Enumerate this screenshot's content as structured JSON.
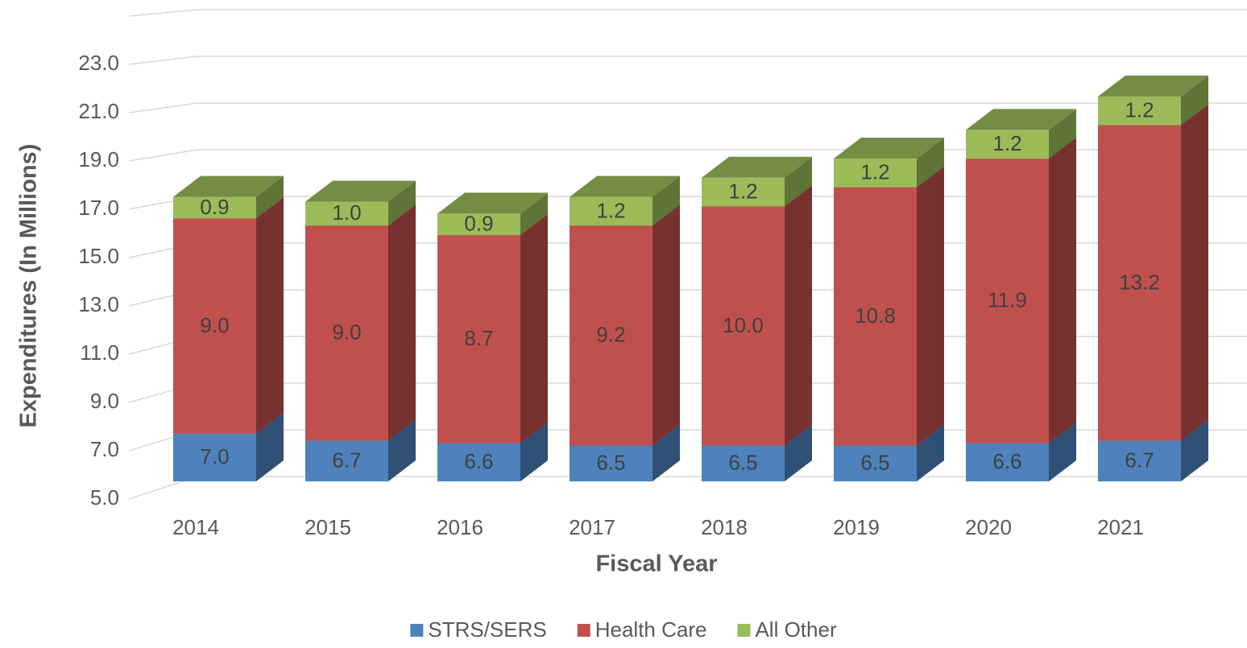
{
  "chart_data": {
    "type": "bar3d_stacked",
    "x_label": "Fiscal Year",
    "y_label": "Expenditures (In Millions)",
    "categories": [
      "2014",
      "2015",
      "2016",
      "2017",
      "2018",
      "2019",
      "2020",
      "2021"
    ],
    "series": [
      {
        "name": "STRS/SERS",
        "color": "#4f81bd",
        "values": [
          7.0,
          6.7,
          6.6,
          6.5,
          6.5,
          6.5,
          6.6,
          6.7
        ],
        "value_labels": [
          "7.0",
          "6.7",
          "6.6",
          "6.5",
          "6.5",
          "6.5",
          "6.6",
          "6.7"
        ]
      },
      {
        "name": "Health Care",
        "color": "#c0504d",
        "values": [
          9.0,
          9.0,
          8.7,
          9.2,
          10.0,
          10.8,
          11.9,
          13.2
        ],
        "value_labels": [
          "9.0",
          "9.0",
          "8.7",
          "9.2",
          "10.0",
          "10.8",
          "11.9",
          "13.2"
        ]
      },
      {
        "name": "All Other",
        "color": "#9bbb59",
        "values": [
          0.9,
          1.0,
          0.9,
          1.2,
          1.2,
          1.2,
          1.2,
          1.2
        ],
        "value_labels": [
          "0.9",
          "1.0",
          "0.9",
          "1.2",
          "1.2",
          "1.2",
          "1.2",
          "1.2"
        ]
      }
    ],
    "ylim": [
      5,
      25
    ],
    "yticks": [
      {
        "value": 5,
        "label": "5.0"
      },
      {
        "value": 7,
        "label": "7.0"
      },
      {
        "value": 9,
        "label": "9.0"
      },
      {
        "value": 11,
        "label": "11.0"
      },
      {
        "value": 13,
        "label": "13.0"
      },
      {
        "value": 15,
        "label": "15.0"
      },
      {
        "value": 17,
        "label": "17.0"
      },
      {
        "value": 19,
        "label": "19.0"
      },
      {
        "value": 21,
        "label": "21.0"
      },
      {
        "value": 23,
        "label": "23.0"
      }
    ],
    "grid": true,
    "legend": "bottom"
  }
}
